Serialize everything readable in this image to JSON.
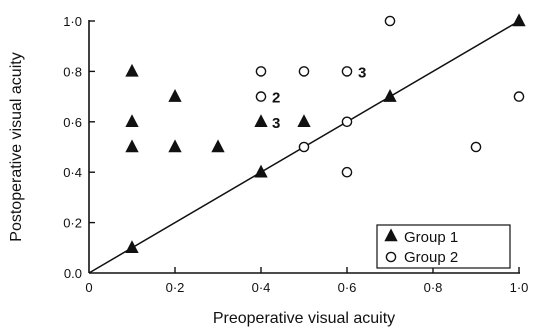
{
  "chart_data": {
    "type": "scatter",
    "title": "",
    "xlabel": "Preoperative visual acuity",
    "ylabel": "Postoperative visual acuity",
    "xlim": [
      0,
      1.0
    ],
    "ylim": [
      0,
      1.0
    ],
    "x_ticks": [
      "0",
      "0·2",
      "0·4",
      "0·6",
      "0·8",
      "1·0"
    ],
    "y_ticks": [
      "0.0",
      "0·2",
      "0·4",
      "0·6",
      "0·8",
      "1·0"
    ],
    "grid": false,
    "legend_position": "bottom-right",
    "reference_line": {
      "from": [
        0,
        0
      ],
      "to": [
        1.0,
        1.0
      ]
    },
    "series": [
      {
        "name": "Group 1",
        "marker": "filled-triangle",
        "points": [
          {
            "x": 0.1,
            "y": 0.8
          },
          {
            "x": 0.1,
            "y": 0.6
          },
          {
            "x": 0.1,
            "y": 0.5
          },
          {
            "x": 0.1,
            "y": 0.1
          },
          {
            "x": 0.2,
            "y": 0.7
          },
          {
            "x": 0.2,
            "y": 0.5
          },
          {
            "x": 0.3,
            "y": 0.5
          },
          {
            "x": 0.4,
            "y": 0.6
          },
          {
            "x": 0.4,
            "y": 0.4
          },
          {
            "x": 0.5,
            "y": 0.6
          },
          {
            "x": 0.7,
            "y": 0.7
          },
          {
            "x": 1.0,
            "y": 1.0
          }
        ]
      },
      {
        "name": "Group 2",
        "marker": "open-circle",
        "points": [
          {
            "x": 0.4,
            "y": 0.8
          },
          {
            "x": 0.4,
            "y": 0.7
          },
          {
            "x": 0.5,
            "y": 0.8
          },
          {
            "x": 0.5,
            "y": 0.5
          },
          {
            "x": 0.6,
            "y": 0.8
          },
          {
            "x": 0.6,
            "y": 0.6
          },
          {
            "x": 0.6,
            "y": 0.4
          },
          {
            "x": 0.7,
            "y": 1.0
          },
          {
            "x": 0.9,
            "y": 0.5
          },
          {
            "x": 1.0,
            "y": 0.7
          }
        ]
      }
    ],
    "annotations": [
      {
        "text": "3",
        "x": 0.6,
        "y": 0.8
      },
      {
        "text": "2",
        "x": 0.4,
        "y": 0.7
      },
      {
        "text": "3",
        "x": 0.4,
        "y": 0.6
      }
    ]
  }
}
